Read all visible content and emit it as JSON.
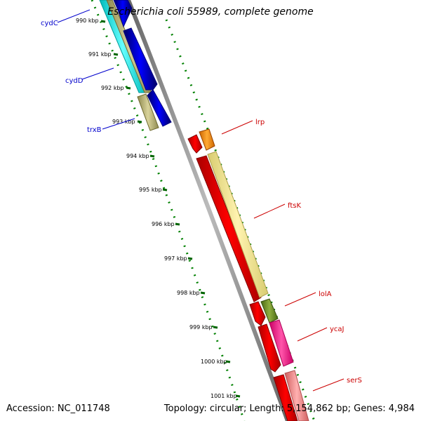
{
  "title": "Escherichia coli 55989, complete genome",
  "footer": {
    "accession": "Accession: NC_011748",
    "summary": "Topology: circular; Length: 5,154,862 bp; Genes: 4,984"
  },
  "ruler": {
    "ticks": [
      "990 kbp",
      "991 kbp",
      "992 kbp",
      "993 kbp",
      "994 kbp",
      "995 kbp",
      "996 kbp",
      "997 kbp",
      "998 kbp",
      "999 kbp",
      "1000 kbp",
      "1001 kbp"
    ]
  },
  "genes": [
    {
      "label": "cydC",
      "color": "#0000cc"
    },
    {
      "label": "cydD",
      "color": "#0000cc"
    },
    {
      "label": "trxB",
      "color": "#0000cc"
    },
    {
      "label": "lrp",
      "color": "#cc0000"
    },
    {
      "label": "ftsK",
      "color": "#cc0000"
    },
    {
      "label": "lolA",
      "color": "#cc0000"
    },
    {
      "label": "ycaJ",
      "color": "#cc0000"
    },
    {
      "label": "serS",
      "color": "#cc0000"
    }
  ],
  "colors": {
    "backbone": "#888888",
    "scale_green": "#008000",
    "cds_reverse": "#0000ff",
    "cds_forward": "#ff0000",
    "cds_cyan": "#00ffff",
    "cds_khaki": "#bdb76b",
    "cds_orange": "#ff8c00",
    "cds_pale_yellow": "#f0e68c",
    "cds_olive": "#6b8e23",
    "cds_magenta": "#ff1493",
    "cds_pink": "#f08080"
  }
}
